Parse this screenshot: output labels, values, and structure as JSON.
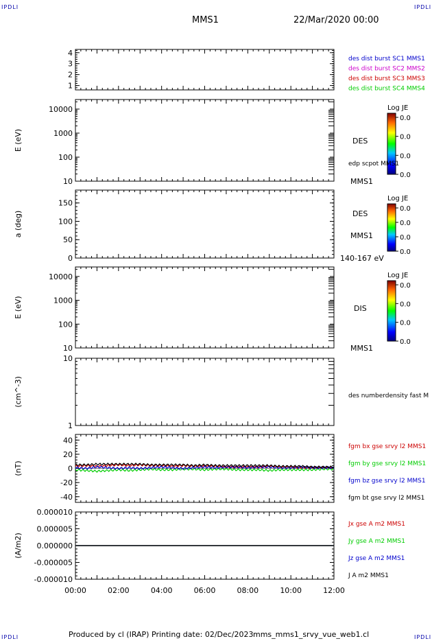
{
  "header": {
    "title": "MMS1",
    "datetime": "22/Mar/2020 00:00",
    "corner_tag": "IPDLI"
  },
  "footer": {
    "produced_by": "Produced by cl (IRAP)",
    "printing_date": "Printing date: 02/Dec/2023",
    "file": "mms_mms1_srvy_vue_web1.cl"
  },
  "chart_data": [
    {
      "type": "line",
      "panel": "dist-burst",
      "ylabel": "",
      "ylim": [
        0.6,
        4.3
      ],
      "yticks": [
        "1",
        "2",
        "3",
        "4"
      ],
      "yticks_values": [
        1,
        2,
        3,
        4
      ],
      "legend": [
        {
          "label": "des dist burst SC1 MMS1",
          "color": "#0000cc"
        },
        {
          "label": "des dist burst SC2 MMS2",
          "color": "#cc00cc"
        },
        {
          "label": "des dist burst SC3 MMS3",
          "color": "#cc0000"
        },
        {
          "label": "des dist burst SC4 MMS4",
          "color": "#00cc00"
        }
      ]
    },
    {
      "type": "heatmap",
      "panel": "des-energy",
      "ylabel": "E (eV)",
      "yscale": "log",
      "ylim": [
        10,
        25000
      ],
      "yticks": [
        "10",
        "100",
        "1000",
        "10000"
      ],
      "yticks_values": [
        10,
        100,
        1000,
        10000
      ],
      "instrument": "DES",
      "spacecraft": "MMS1",
      "overlay": "edp scpot MMS1",
      "colorbar": {
        "title": "Log JE",
        "ticks": [
          "0.0",
          "0.0",
          "0.0",
          "0.0"
        ]
      }
    },
    {
      "type": "heatmap",
      "panel": "des-pitch",
      "ylabel": "a (deg)",
      "ylim": [
        0,
        185
      ],
      "yticks": [
        "0",
        "50",
        "100",
        "150"
      ],
      "yticks_values": [
        0,
        50,
        100,
        150
      ],
      "instrument": "DES",
      "spacecraft": "MMS1",
      "energy_range": "140-167 eV",
      "colorbar": {
        "title": "Log JE",
        "ticks": [
          "0.0",
          "0.0",
          "0.0",
          "0.0"
        ]
      }
    },
    {
      "type": "heatmap",
      "panel": "dis-energy",
      "ylabel": "E (eV)",
      "yscale": "log",
      "ylim": [
        10,
        25000
      ],
      "yticks": [
        "10",
        "100",
        "1000",
        "10000"
      ],
      "yticks_values": [
        10,
        100,
        1000,
        10000
      ],
      "instrument": "DIS",
      "spacecraft": "MMS1",
      "colorbar": {
        "title": "Log JE",
        "ticks": [
          "0.0",
          "0.0",
          "0.0",
          "0.0"
        ]
      }
    },
    {
      "type": "line",
      "panel": "density",
      "ylabel": "(cm^-3)",
      "yscale": "log",
      "ylim": [
        1,
        10
      ],
      "yticks": [
        "1",
        "10"
      ],
      "yticks_values": [
        1,
        10
      ],
      "legend": [
        {
          "label": "des numberdensity fast M",
          "color": "#000000"
        }
      ]
    },
    {
      "type": "line",
      "panel": "fgm",
      "ylabel": "(nT)",
      "ylim": [
        -48,
        48
      ],
      "yticks": [
        "-40",
        "-20",
        "0",
        "20",
        "40"
      ],
      "yticks_values": [
        -40,
        -20,
        0,
        20,
        40
      ],
      "x_hours": [
        0,
        0.5,
        1,
        1.5,
        2,
        2.5,
        3,
        3.5,
        4,
        4.5,
        5,
        5.5,
        6,
        6.5,
        7,
        7.5,
        8,
        8.5,
        9,
        9.5,
        10,
        10.5,
        11,
        11.5,
        12
      ],
      "series": [
        {
          "name": "fgm bx gse srvy l2 MMS1",
          "color": "#cc0000",
          "values": [
            3,
            4,
            3,
            4,
            5,
            4,
            5,
            4,
            4,
            3,
            4,
            3,
            3,
            3,
            2,
            2,
            2,
            2,
            3,
            2,
            2,
            1,
            1,
            1,
            1
          ]
        },
        {
          "name": "fgm by gse srvy l2 MMS1",
          "color": "#00cc00",
          "values": [
            -2,
            -3,
            -4,
            -3,
            -2,
            -3,
            -2,
            -1,
            -2,
            -2,
            -1,
            -1,
            -2,
            -1,
            -1,
            -2,
            -2,
            -2,
            -3,
            -2,
            -2,
            -2,
            -2,
            -1,
            -1
          ]
        },
        {
          "name": "fgm bz gse srvy l2 MMS1",
          "color": "#0000cc",
          "values": [
            1,
            0,
            2,
            1,
            0,
            1,
            0,
            1,
            2,
            1,
            0,
            1,
            2,
            1,
            2,
            2,
            1,
            2,
            2,
            1,
            1,
            2,
            1,
            1,
            1
          ]
        },
        {
          "name": "fgm bt gse srvy l2 MMS1",
          "color": "#000000",
          "values": [
            5,
            5,
            6,
            6,
            6,
            6,
            6,
            5,
            5,
            5,
            5,
            4,
            5,
            4,
            4,
            4,
            4,
            4,
            4,
            3,
            3,
            3,
            2,
            2,
            2
          ]
        }
      ]
    },
    {
      "type": "line",
      "panel": "current",
      "ylabel": "(A/m2)",
      "ylim": [
        -1e-05,
        1e-05
      ],
      "yticks": [
        "-0.000010",
        "-0.000005",
        "0.000000",
        "0.000005",
        "0.000010"
      ],
      "yticks_values": [
        -1e-05,
        -5e-06,
        0,
        5e-06,
        1e-05
      ],
      "x_hours": [
        0,
        1,
        2,
        3,
        4,
        5,
        6,
        7,
        8,
        9,
        10,
        11,
        12
      ],
      "series": [
        {
          "name": "Jx gse A m2 MMS1",
          "color": "#cc0000",
          "values": [
            0,
            0,
            0,
            0,
            0,
            0,
            0,
            0,
            0,
            0,
            0,
            0,
            0
          ]
        },
        {
          "name": "Jy gse A m2 MMS1",
          "color": "#00cc00",
          "values": [
            0,
            0,
            0,
            0,
            0,
            0,
            0,
            0,
            0,
            0,
            0,
            0,
            0
          ]
        },
        {
          "name": "Jz gse A m2 MMS1",
          "color": "#0000cc",
          "values": [
            0,
            0,
            0,
            0,
            0,
            0,
            0,
            0,
            0,
            0,
            0,
            0,
            0
          ]
        },
        {
          "name": "J A m2 MMS1",
          "color": "#000000",
          "values": [
            0,
            0,
            0,
            0,
            0,
            0,
            0,
            0,
            0,
            0,
            0,
            0,
            0
          ]
        }
      ]
    }
  ],
  "x_axis": {
    "range_hours": [
      0,
      12
    ],
    "ticks": [
      "00:00",
      "02:00",
      "04:00",
      "06:00",
      "08:00",
      "10:00",
      "12:00"
    ],
    "tick_hours": [
      0,
      2,
      4,
      6,
      8,
      10,
      12
    ]
  }
}
